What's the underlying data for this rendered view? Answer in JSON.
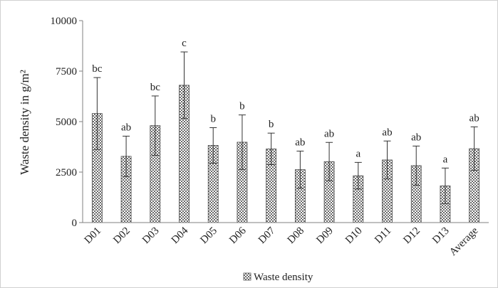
{
  "chart_data": {
    "type": "bar",
    "categories": [
      "D01",
      "D02",
      "D03",
      "D04",
      "D05",
      "D06",
      "D07",
      "D08",
      "D09",
      "D10",
      "D11",
      "D12",
      "D13",
      "Average"
    ],
    "series": [
      {
        "name": "Waste density",
        "values": [
          5400,
          3280,
          4800,
          6800,
          3820,
          3980,
          3650,
          2620,
          3020,
          2320,
          3100,
          2820,
          1820,
          3660
        ],
        "error": [
          1780,
          1000,
          1470,
          1650,
          880,
          1350,
          780,
          920,
          950,
          660,
          940,
          970,
          880,
          1080
        ],
        "significance": [
          "bc",
          "ab",
          "bc",
          "c",
          "b",
          "b",
          "b",
          "ab",
          "ab",
          "a",
          "ab",
          "ab",
          "a",
          "ab"
        ]
      }
    ],
    "title": "",
    "xlabel": "",
    "ylabel": "Waste density in g/m²",
    "ylim": [
      0,
      10000
    ],
    "yticks": [
      "0",
      "2500",
      "5000",
      "7500",
      "10000"
    ],
    "grid": false,
    "legend_position": "bottom",
    "bar_pattern": "crosshatch"
  }
}
